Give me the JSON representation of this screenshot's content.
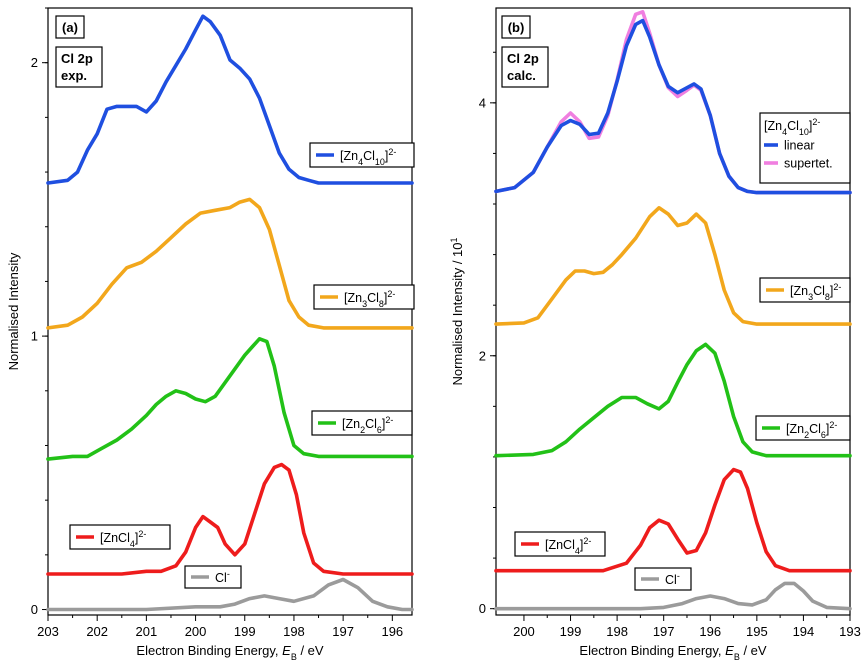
{
  "chart_data": [
    {
      "type": "line",
      "panel_label": "(a)",
      "inset_label": [
        "Cl 2p",
        "exp."
      ],
      "xlabel": "Electron Binding Energy, E_B / eV",
      "xlabel_parts": {
        "pre": "Electron Binding Energy, ",
        "var": "E",
        "sub": "B",
        "post": " / eV"
      },
      "ylabel": "Normalised Intensity",
      "xlim": [
        203,
        195.6
      ],
      "ylim": [
        -0.02,
        2.2
      ],
      "x_reversed": true,
      "xticks": [
        203,
        202,
        201,
        200,
        199,
        198,
        197,
        196
      ],
      "yticks": [
        0,
        1,
        2
      ],
      "grid": false,
      "series": [
        {
          "name": "[Zn4Cl10]2-",
          "color": "#1f4fe0",
          "legend": {
            "base": "[Zn",
            "s1": "4",
            "mid": "Cl",
            "s2": "10",
            "end": "]",
            "sup": "2-"
          },
          "x": [
            203,
            202.6,
            202.4,
            202.2,
            202,
            201.8,
            201.6,
            201.4,
            201.2,
            201,
            200.8,
            200.6,
            200.4,
            200.2,
            200,
            199.85,
            199.7,
            199.5,
            199.3,
            199.1,
            198.9,
            198.7,
            198.5,
            198.3,
            198.1,
            197.9,
            197.7,
            197.5,
            197.2,
            196.8,
            196.4,
            196,
            195.6
          ],
          "y": [
            1.56,
            1.57,
            1.6,
            1.68,
            1.74,
            1.83,
            1.84,
            1.84,
            1.84,
            1.82,
            1.86,
            1.93,
            1.99,
            2.05,
            2.12,
            2.17,
            2.15,
            2.1,
            2.01,
            1.98,
            1.94,
            1.87,
            1.77,
            1.67,
            1.61,
            1.58,
            1.57,
            1.56,
            1.56,
            1.56,
            1.56,
            1.56,
            1.56
          ]
        },
        {
          "name": "[Zn3Cl8]2-",
          "color": "#f2a71c",
          "legend": {
            "base": "[Zn",
            "s1": "3",
            "mid": "Cl",
            "s2": "8",
            "end": "]",
            "sup": "2-"
          },
          "x": [
            203,
            202.6,
            202.3,
            202,
            201.7,
            201.4,
            201.1,
            200.8,
            200.5,
            200.2,
            199.9,
            199.6,
            199.3,
            199.1,
            198.9,
            198.7,
            198.5,
            198.3,
            198.1,
            197.9,
            197.7,
            197.4,
            197,
            196.5,
            196,
            195.6
          ],
          "y": [
            1.03,
            1.04,
            1.07,
            1.12,
            1.19,
            1.25,
            1.27,
            1.31,
            1.36,
            1.41,
            1.45,
            1.46,
            1.47,
            1.49,
            1.5,
            1.47,
            1.39,
            1.26,
            1.13,
            1.07,
            1.04,
            1.03,
            1.03,
            1.03,
            1.03,
            1.03
          ]
        },
        {
          "name": "[Zn2Cl6]2-",
          "color": "#22c117",
          "legend": {
            "base": "[Zn",
            "s1": "2",
            "mid": "Cl",
            "s2": "6",
            "end": "]",
            "sup": "2-"
          },
          "x": [
            203,
            202.5,
            202.2,
            201.9,
            201.6,
            201.3,
            201,
            200.8,
            200.6,
            200.4,
            200.2,
            200,
            199.8,
            199.6,
            199.4,
            199.2,
            199,
            198.85,
            198.7,
            198.55,
            198.4,
            198.2,
            198,
            197.8,
            197.5,
            197,
            196.5,
            196,
            195.6
          ],
          "y": [
            0.55,
            0.56,
            0.56,
            0.59,
            0.62,
            0.66,
            0.71,
            0.75,
            0.78,
            0.8,
            0.79,
            0.77,
            0.76,
            0.78,
            0.83,
            0.88,
            0.93,
            0.96,
            0.99,
            0.98,
            0.89,
            0.72,
            0.6,
            0.57,
            0.56,
            0.56,
            0.56,
            0.56,
            0.56
          ]
        },
        {
          "name": "[ZnCl4]2-",
          "color": "#ee1c1c",
          "legend": {
            "base": "[ZnCl",
            "s1": "4",
            "mid": "",
            "s2": "",
            "end": "]",
            "sup": "2-"
          },
          "x": [
            203,
            202.5,
            202,
            201.5,
            201,
            200.7,
            200.4,
            200.2,
            200,
            199.85,
            199.7,
            199.55,
            199.4,
            199.2,
            199,
            198.8,
            198.6,
            198.4,
            198.25,
            198.1,
            197.95,
            197.8,
            197.6,
            197.4,
            197,
            196.5,
            196,
            195.6
          ],
          "y": [
            0.13,
            0.13,
            0.13,
            0.13,
            0.14,
            0.14,
            0.16,
            0.21,
            0.3,
            0.34,
            0.32,
            0.3,
            0.24,
            0.2,
            0.24,
            0.35,
            0.46,
            0.52,
            0.53,
            0.51,
            0.42,
            0.28,
            0.17,
            0.14,
            0.13,
            0.13,
            0.13,
            0.13
          ]
        },
        {
          "name": "Cl-",
          "color": "#9b9b9b",
          "legend": {
            "base": "Cl",
            "s1": "",
            "mid": "",
            "s2": "",
            "end": "",
            "sup": "-"
          },
          "x": [
            203,
            202,
            201,
            200,
            199.5,
            199.2,
            198.9,
            198.6,
            198.3,
            198,
            197.6,
            197.3,
            197,
            196.7,
            196.4,
            196.1,
            195.8,
            195.6
          ],
          "y": [
            0,
            0,
            0,
            0.01,
            0.01,
            0.02,
            0.04,
            0.05,
            0.04,
            0.03,
            0.05,
            0.09,
            0.11,
            0.08,
            0.03,
            0.01,
            0,
            0
          ]
        }
      ]
    },
    {
      "type": "line",
      "panel_label": "(b)",
      "inset_label": [
        "Cl 2p",
        "calc."
      ],
      "xlabel": "Electron Binding Energy, E_B / eV",
      "xlabel_parts": {
        "pre": "Electron Binding Energy, ",
        "var": "E",
        "sub": "B",
        "post": " / eV"
      },
      "ylabel": "Normalised Intensity / 10^1",
      "ylabel_parts": {
        "pre": "Normalised Intensity / 10",
        "sup": "1"
      },
      "xlim": [
        200.6,
        193
      ],
      "ylim": [
        -0.05,
        4.75
      ],
      "x_reversed": true,
      "xticks": [
        200,
        199,
        198,
        197,
        196,
        195,
        194,
        193
      ],
      "yticks": [
        0,
        2,
        4
      ],
      "grid": false,
      "legend_title": {
        "base": "[Zn",
        "s1": "4",
        "mid": "Cl",
        "s2": "10",
        "end": "]",
        "sup": "2-"
      },
      "legend_entries": [
        "linear",
        "supertet."
      ],
      "series": [
        {
          "name": "supertet.",
          "color": "#f07fe0",
          "x": [
            200.6,
            200.2,
            199.8,
            199.5,
            199.2,
            199,
            198.8,
            198.6,
            198.4,
            198.2,
            198,
            197.8,
            197.6,
            197.45,
            197.3,
            197.1,
            196.9,
            196.7,
            196.5,
            196.35,
            196.2,
            196,
            195.8,
            195.6,
            195.4,
            195.2,
            195,
            194.5,
            194,
            193
          ],
          "y": [
            3.3,
            3.33,
            3.45,
            3.65,
            3.85,
            3.92,
            3.85,
            3.72,
            3.73,
            3.9,
            4.18,
            4.5,
            4.7,
            4.72,
            4.55,
            4.3,
            4.12,
            4.05,
            4.1,
            4.14,
            4.1,
            3.9,
            3.6,
            3.42,
            3.33,
            3.3,
            3.29,
            3.29,
            3.29,
            3.29
          ]
        },
        {
          "name": "linear",
          "color": "#1f4fe0",
          "x": [
            200.6,
            200.2,
            199.8,
            199.5,
            199.2,
            199,
            198.8,
            198.6,
            198.4,
            198.2,
            198,
            197.8,
            197.6,
            197.45,
            197.3,
            197.1,
            196.9,
            196.7,
            196.5,
            196.35,
            196.2,
            196,
            195.8,
            195.6,
            195.4,
            195.2,
            195,
            194.5,
            194,
            193
          ],
          "y": [
            3.3,
            3.33,
            3.45,
            3.65,
            3.82,
            3.86,
            3.83,
            3.75,
            3.76,
            3.92,
            4.17,
            4.45,
            4.62,
            4.65,
            4.52,
            4.3,
            4.13,
            4.08,
            4.12,
            4.15,
            4.11,
            3.9,
            3.6,
            3.42,
            3.33,
            3.3,
            3.29,
            3.29,
            3.29,
            3.29
          ]
        },
        {
          "name": "[Zn3Cl8]2-",
          "color": "#f2a71c",
          "legend": {
            "base": "[Zn",
            "s1": "3",
            "mid": "Cl",
            "s2": "8",
            "end": "]",
            "sup": "2-"
          },
          "x": [
            200.6,
            200,
            199.7,
            199.4,
            199.1,
            198.9,
            198.7,
            198.5,
            198.3,
            198.1,
            197.9,
            197.6,
            197.3,
            197.1,
            196.9,
            196.7,
            196.5,
            196.3,
            196.1,
            195.9,
            195.7,
            195.5,
            195.3,
            195,
            194.5,
            194,
            193
          ],
          "y": [
            2.25,
            2.26,
            2.3,
            2.45,
            2.6,
            2.67,
            2.67,
            2.65,
            2.66,
            2.72,
            2.8,
            2.93,
            3.1,
            3.17,
            3.12,
            3.03,
            3.05,
            3.12,
            3.05,
            2.8,
            2.52,
            2.34,
            2.27,
            2.25,
            2.25,
            2.25,
            2.25
          ]
        },
        {
          "name": "[Zn2Cl6]2-",
          "color": "#22c117",
          "legend": {
            "base": "[Zn",
            "s1": "2",
            "mid": "Cl",
            "s2": "6",
            "end": "]",
            "sup": "2-"
          },
          "x": [
            200.6,
            199.8,
            199.4,
            199.1,
            198.8,
            198.5,
            198.2,
            197.9,
            197.6,
            197.35,
            197.1,
            196.9,
            196.7,
            196.5,
            196.3,
            196.1,
            195.9,
            195.7,
            195.5,
            195.3,
            195.1,
            194.8,
            194.5,
            194,
            193
          ],
          "y": [
            1.21,
            1.22,
            1.25,
            1.32,
            1.42,
            1.51,
            1.6,
            1.67,
            1.67,
            1.62,
            1.58,
            1.64,
            1.79,
            1.93,
            2.04,
            2.09,
            2.02,
            1.8,
            1.52,
            1.32,
            1.24,
            1.21,
            1.21,
            1.21,
            1.21
          ]
        },
        {
          "name": "[ZnCl4]2-",
          "color": "#ee1c1c",
          "legend": {
            "base": "[ZnCl",
            "s1": "4",
            "mid": "",
            "s2": "",
            "end": "]",
            "sup": "2-"
          },
          "x": [
            200.6,
            199,
            198.3,
            197.8,
            197.5,
            197.3,
            197.1,
            196.9,
            196.7,
            196.5,
            196.3,
            196.1,
            195.9,
            195.7,
            195.5,
            195.35,
            195.2,
            195,
            194.8,
            194.6,
            194.3,
            194,
            193
          ],
          "y": [
            0.3,
            0.3,
            0.3,
            0.36,
            0.5,
            0.64,
            0.7,
            0.67,
            0.55,
            0.44,
            0.46,
            0.6,
            0.82,
            1.02,
            1.1,
            1.08,
            0.95,
            0.68,
            0.45,
            0.34,
            0.3,
            0.3,
            0.3
          ]
        },
        {
          "name": "Cl-",
          "color": "#9b9b9b",
          "legend": {
            "base": "Cl",
            "s1": "",
            "mid": "",
            "s2": "",
            "end": "",
            "sup": "-"
          },
          "x": [
            200.6,
            197.5,
            197,
            196.6,
            196.3,
            196,
            195.7,
            195.4,
            195.1,
            194.8,
            194.6,
            194.4,
            194.2,
            194,
            193.8,
            193.5,
            193
          ],
          "y": [
            0,
            0,
            0.01,
            0.04,
            0.08,
            0.1,
            0.08,
            0.04,
            0.03,
            0.07,
            0.15,
            0.2,
            0.2,
            0.14,
            0.06,
            0.01,
            0
          ]
        }
      ]
    }
  ]
}
